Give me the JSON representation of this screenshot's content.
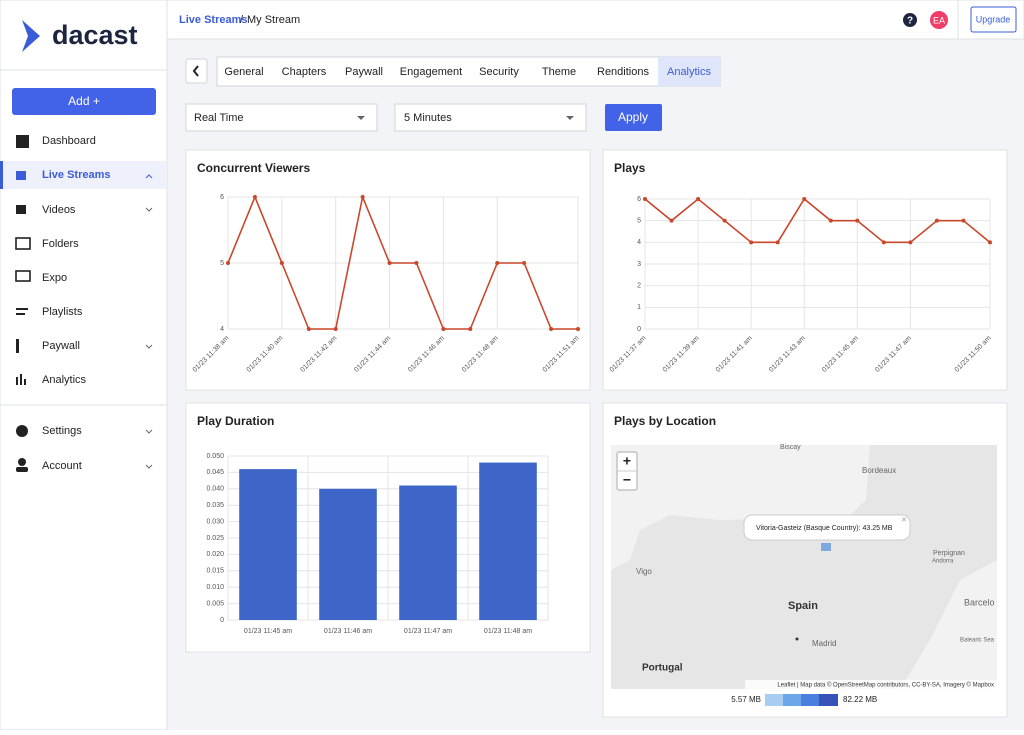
{
  "sidebar": {
    "logo": "dacast",
    "add_button": "Add +",
    "items": [
      "Dashboard",
      "Live Streams",
      "Videos",
      "Folders",
      "Expo",
      "Playlists",
      "Paywall",
      "Analytics",
      "Settings",
      "Account"
    ]
  },
  "header": {
    "breadcrumb": [
      "Live Streams",
      "My Stream"
    ],
    "separator": "/",
    "help": "?",
    "avatar": "EA",
    "upgrade": "Upgrade"
  },
  "tabs": [
    "General",
    "Chapters",
    "Paywall",
    "Engagement",
    "Security",
    "Theme",
    "Renditions",
    "Analytics"
  ],
  "filters": {
    "range": "Real Time",
    "interval": "5 Minutes",
    "apply": "Apply"
  },
  "chart_data": [
    {
      "type": "line",
      "title": "Concurrent Viewers",
      "categories": [
        "01/23 11:38 am",
        null,
        "01/23 11:40 am",
        null,
        "01/23 11:42 am",
        null,
        "01/23 11:44 am",
        null,
        "01/23 11:46 am",
        null,
        "01/23 11:48 am",
        null,
        null,
        "01/23 11:51 am"
      ],
      "values": [
        5,
        6,
        5,
        4,
        4,
        6,
        5,
        5,
        4,
        4,
        5,
        5,
        4,
        4
      ],
      "color": "#c9472b",
      "ylim": [
        4,
        6
      ],
      "yticks": [
        4,
        5,
        6
      ],
      "grid": true
    },
    {
      "type": "line",
      "title": "Plays",
      "categories": [
        "01/23 11:37 am",
        null,
        "01/23 11:39 am",
        null,
        "01/23 11:41 am",
        null,
        "01/23 11:43 am",
        null,
        "01/23 11:45 am",
        null,
        "01/23 11:47 am",
        null,
        null,
        "01/23 11:50 am"
      ],
      "values": [
        6,
        5,
        6,
        5,
        4,
        4,
        6,
        5,
        5,
        4,
        4,
        5,
        5,
        4
      ],
      "color": "#c9472b",
      "ylim": [
        0,
        6
      ],
      "yticks": [
        0,
        1,
        2,
        3,
        4,
        5,
        6
      ],
      "grid": true
    },
    {
      "type": "bar",
      "title": "Play Duration",
      "categories": [
        "01/23 11:45 am",
        "01/23 11:46 am",
        "01/23 11:47 am",
        "01/23 11:48 am"
      ],
      "values": [
        0.046,
        0.04,
        0.041,
        0.048
      ],
      "color": "#3d66c8",
      "ylim": [
        0,
        0.05
      ],
      "yticks": [
        0,
        0.005,
        {
          "value": 0.01,
          "label": "0.010"
        },
        0.015,
        {
          "value": 0.02,
          "label": "0.020"
        },
        0.025,
        {
          "value": 0.03,
          "label": "0.030"
        },
        0.035,
        {
          "value": 0.04,
          "label": "0.040"
        },
        0.045,
        {
          "value": 0.05,
          "label": "0.050"
        }
      ],
      "grid": true
    }
  ],
  "map": {
    "title": "Plays by Location",
    "zoom_in": "+",
    "zoom_out": "−",
    "labels": [
      "Biscay",
      "Bordeaux",
      "Vigo",
      "Spain",
      "Madrid",
      "Portugal",
      "Perpignan",
      "Andorra",
      "Barcelo",
      "Balearic Sea"
    ],
    "popup": "Vitoria-Gasteiz (Basque Country): 43.25 MB",
    "close": "×",
    "attribution": "Leaflet | Map data © OpenStreetMap contributors, CC-BY-SA, Imagery © Mapbox",
    "legend_min": "5.57 MB",
    "legend_max": "82.22 MB"
  }
}
